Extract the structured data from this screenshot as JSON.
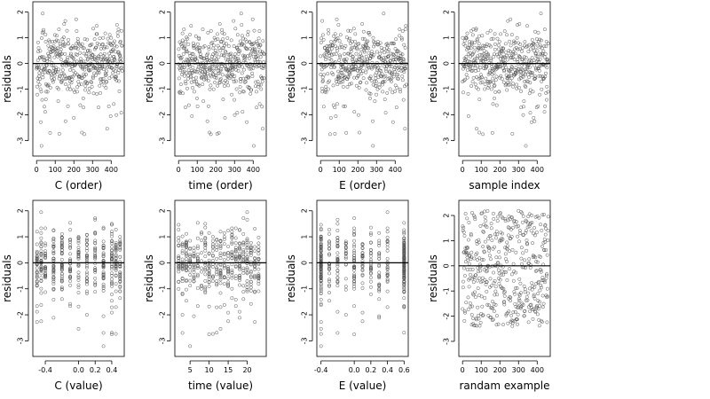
{
  "chart_data": [
    {
      "type": "scatter",
      "xlabel": "C (order)",
      "ylabel": "residuals",
      "xlim": [
        -20,
        470
      ],
      "ylim": [
        -3.6,
        2.4
      ],
      "xticks": [
        0,
        100,
        200,
        300,
        400
      ],
      "yticks": [
        -3,
        -2,
        -1,
        0,
        1,
        2
      ],
      "hline": 0,
      "points": "generated"
    },
    {
      "type": "scatter",
      "xlabel": "time (order)",
      "ylabel": "residuals",
      "xlim": [
        -20,
        470
      ],
      "ylim": [
        -3.6,
        2.4
      ],
      "xticks": [
        0,
        100,
        200,
        300,
        400
      ],
      "yticks": [
        -3,
        -2,
        -1,
        0,
        1,
        2
      ],
      "hline": 0,
      "points": "generated"
    },
    {
      "type": "scatter",
      "xlabel": "E (order)",
      "ylabel": "residuals",
      "xlim": [
        -20,
        470
      ],
      "ylim": [
        -3.6,
        2.4
      ],
      "xticks": [
        0,
        100,
        200,
        300,
        400
      ],
      "yticks": [
        -3,
        -2,
        -1,
        0,
        1,
        2
      ],
      "hline": 0,
      "points": "generated"
    },
    {
      "type": "scatter",
      "xlabel": "sample index",
      "ylabel": "residuals",
      "xlim": [
        -20,
        470
      ],
      "ylim": [
        -3.6,
        2.4
      ],
      "xticks": [
        0,
        100,
        200,
        300,
        400
      ],
      "yticks": [
        -3,
        -2,
        -1,
        0,
        1,
        2
      ],
      "hline": 0,
      "points": "generated"
    },
    {
      "type": "scatter",
      "xlabel": "C (value)",
      "ylabel": "residuals",
      "xlim": [
        -0.55,
        0.55
      ],
      "ylim": [
        -3.6,
        2.4
      ],
      "xticks": [
        -0.4,
        0.0,
        0.2,
        0.4
      ],
      "xticklabels": [
        "-0.4",
        "0.0",
        "0.2",
        "0.4"
      ],
      "yticks": [
        -3,
        -2,
        -1,
        0,
        1,
        2
      ],
      "hline": 0,
      "points": "generated"
    },
    {
      "type": "scatter",
      "xlabel": "time (value)",
      "ylabel": "residuals",
      "xlim": [
        1,
        25
      ],
      "ylim": [
        -3.6,
        2.4
      ],
      "xticks": [
        5,
        10,
        15,
        20
      ],
      "yticks": [
        -3,
        -2,
        -1,
        0,
        1,
        2
      ],
      "hline": 0,
      "points": "generated"
    },
    {
      "type": "scatter",
      "xlabel": "E (value)",
      "ylabel": "residuals",
      "xlim": [
        -0.45,
        0.65
      ],
      "ylim": [
        -3.6,
        2.4
      ],
      "xticks": [
        -0.4,
        0.0,
        0.2,
        0.4,
        0.6
      ],
      "xticklabels": [
        "-0.4",
        "0.0",
        "0.2",
        "0.4",
        "0.6"
      ],
      "yticks": [
        -3,
        -2,
        -1,
        0,
        1,
        2
      ],
      "hline": 0,
      "points": "generated"
    },
    {
      "type": "scatter",
      "xlabel": "randam example",
      "ylabel": "residuals",
      "xlim": [
        -20,
        470
      ],
      "ylim": [
        -3.6,
        2.6
      ],
      "xticks": [
        0,
        100,
        200,
        300,
        400
      ],
      "yticks": [
        -3,
        -2,
        -1,
        0,
        1,
        2
      ],
      "hline": 0,
      "points": "generated"
    }
  ]
}
